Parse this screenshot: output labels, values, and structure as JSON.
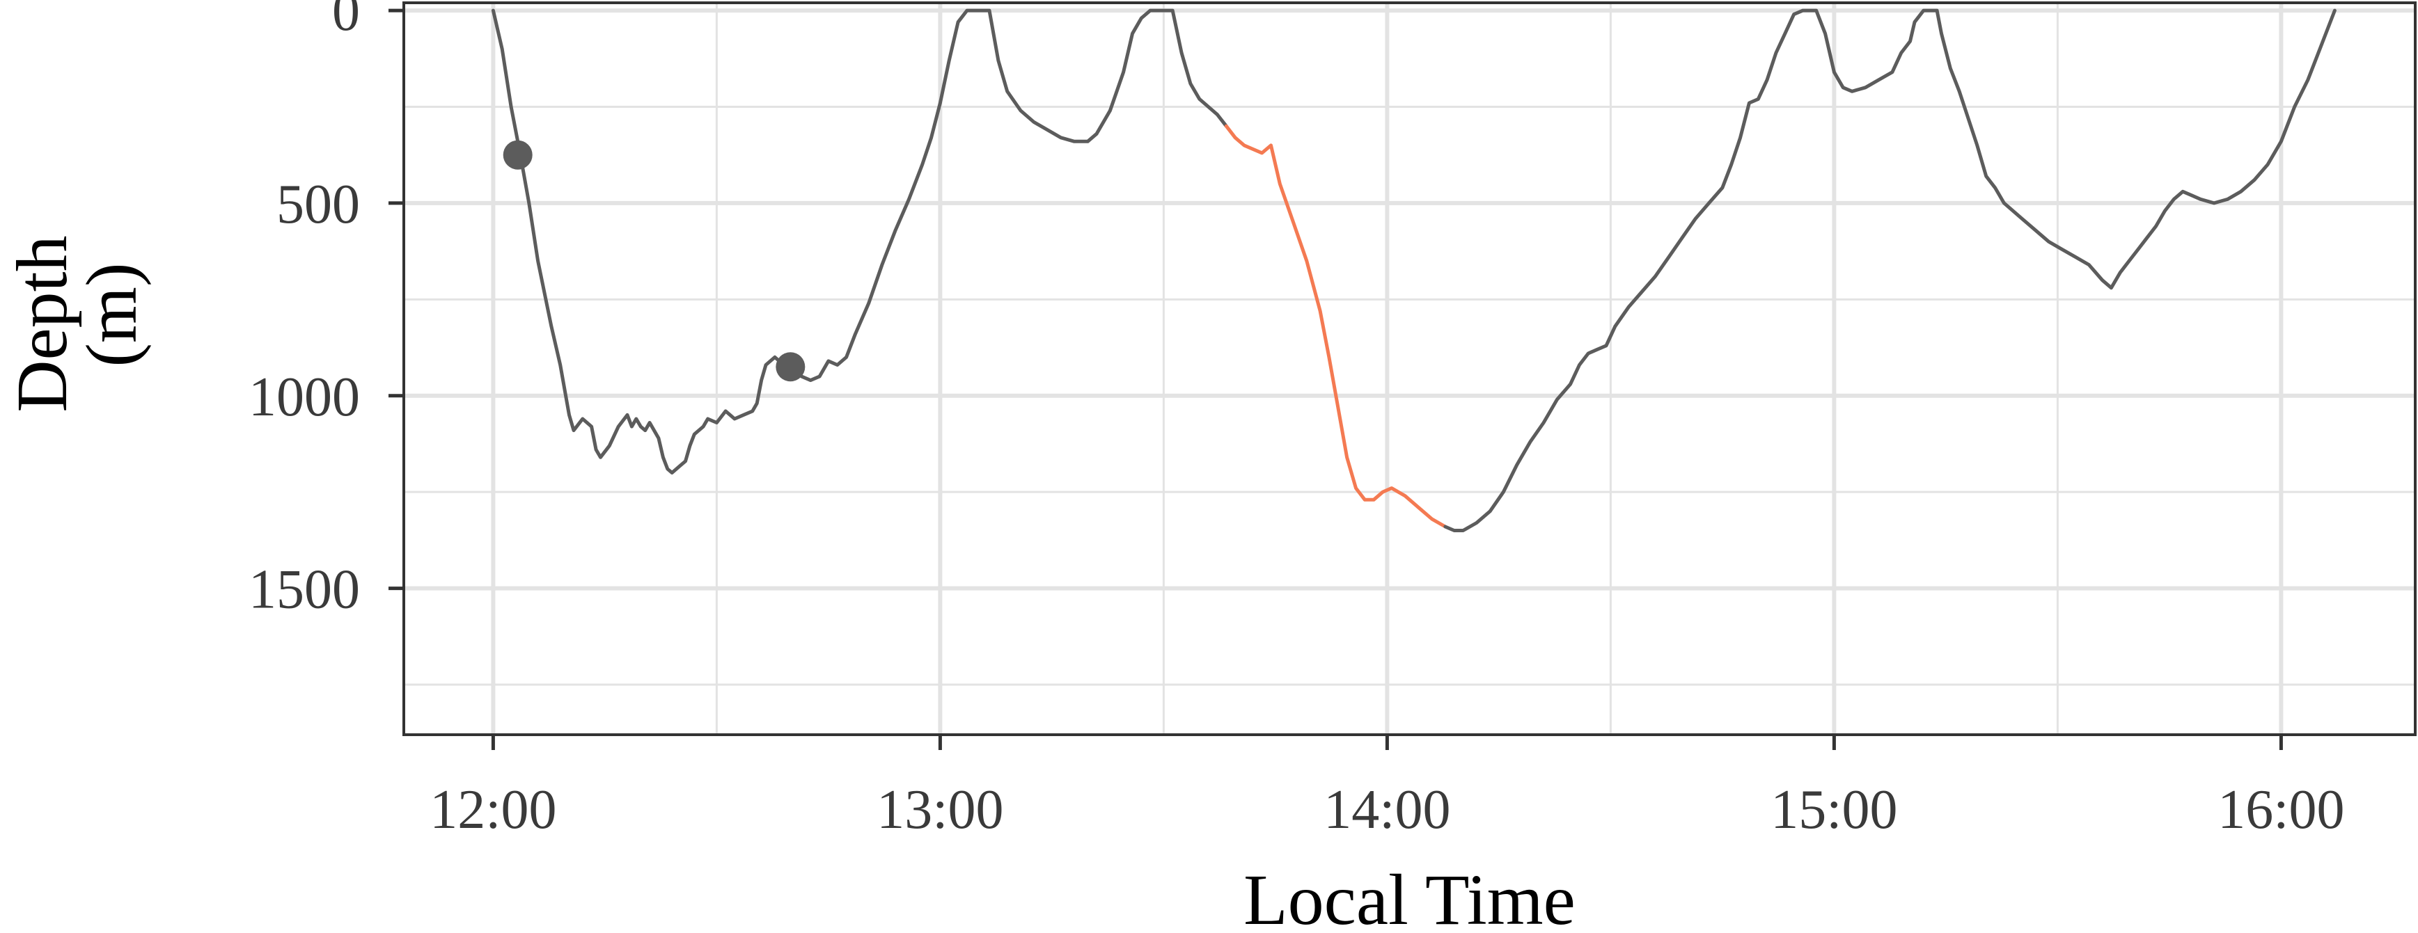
{
  "chart_data": {
    "type": "line",
    "xlabel": "Local Time",
    "ylabel_lines": [
      "Depth",
      "(m)"
    ],
    "x_units": "hours",
    "xlim": [
      11.8,
      16.3
    ],
    "ylim": [
      1880,
      -20
    ],
    "y_reversed": true,
    "x_ticks": [
      {
        "value": 12,
        "label": "12:00"
      },
      {
        "value": 13,
        "label": "13:00"
      },
      {
        "value": 14,
        "label": "14:00"
      },
      {
        "value": 15,
        "label": "15:00"
      },
      {
        "value": 16,
        "label": "16:00"
      }
    ],
    "y_ticks": [
      {
        "value": 0,
        "label": "0"
      },
      {
        "value": 500,
        "label": "500"
      },
      {
        "value": 1000,
        "label": "1000"
      },
      {
        "value": 1500,
        "label": "1500"
      }
    ],
    "x_minor": [
      12.5,
      13.5,
      14.5,
      15.5
    ],
    "y_minor": [
      250,
      750,
      1250,
      1750
    ],
    "grid": true,
    "colors": {
      "line": "#5c5c5c",
      "highlight": "#f47a52",
      "marker": "#5c5c5c",
      "grid": "#e3e3e3",
      "panel_border": "#333333"
    },
    "series": [
      {
        "points": [
          [
            12.0,
            0
          ],
          [
            12.02,
            100
          ],
          [
            12.04,
            250
          ],
          [
            12.06,
            370
          ],
          [
            12.08,
            500
          ],
          [
            12.1,
            650
          ],
          [
            12.13,
            820
          ],
          [
            12.15,
            920
          ],
          [
            12.17,
            1050
          ],
          [
            12.18,
            1090
          ],
          [
            12.2,
            1060
          ],
          [
            12.22,
            1080
          ],
          [
            12.23,
            1140
          ],
          [
            12.24,
            1160
          ],
          [
            12.26,
            1130
          ],
          [
            12.28,
            1080
          ],
          [
            12.3,
            1050
          ],
          [
            12.31,
            1080
          ],
          [
            12.32,
            1060
          ],
          [
            12.33,
            1080
          ],
          [
            12.34,
            1090
          ],
          [
            12.35,
            1070
          ],
          [
            12.37,
            1110
          ],
          [
            12.38,
            1160
          ],
          [
            12.39,
            1190
          ],
          [
            12.4,
            1200
          ],
          [
            12.42,
            1180
          ],
          [
            12.43,
            1170
          ],
          [
            12.44,
            1130
          ],
          [
            12.45,
            1100
          ],
          [
            12.47,
            1080
          ],
          [
            12.48,
            1060
          ],
          [
            12.5,
            1070
          ],
          [
            12.52,
            1040
          ],
          [
            12.54,
            1060
          ],
          [
            12.56,
            1050
          ],
          [
            12.58,
            1040
          ],
          [
            12.59,
            1020
          ],
          [
            12.6,
            960
          ],
          [
            12.61,
            920
          ],
          [
            12.63,
            900
          ],
          [
            12.65,
            920
          ],
          [
            12.67,
            930
          ],
          [
            12.69,
            950
          ],
          [
            12.71,
            960
          ],
          [
            12.73,
            950
          ],
          [
            12.75,
            910
          ],
          [
            12.77,
            920
          ],
          [
            12.79,
            900
          ],
          [
            12.81,
            840
          ],
          [
            12.84,
            760
          ],
          [
            12.87,
            660
          ],
          [
            12.9,
            570
          ],
          [
            12.93,
            490
          ],
          [
            12.96,
            400
          ],
          [
            12.98,
            330
          ],
          [
            13.0,
            240
          ],
          [
            13.02,
            130
          ],
          [
            13.04,
            30
          ],
          [
            13.06,
            0
          ],
          [
            13.09,
            0
          ],
          [
            13.11,
            0
          ],
          [
            13.13,
            130
          ],
          [
            13.15,
            210
          ],
          [
            13.18,
            260
          ],
          [
            13.21,
            290
          ],
          [
            13.24,
            310
          ],
          [
            13.27,
            330
          ],
          [
            13.3,
            340
          ],
          [
            13.33,
            340
          ],
          [
            13.35,
            320
          ],
          [
            13.38,
            260
          ],
          [
            13.41,
            160
          ],
          [
            13.43,
            60
          ],
          [
            13.45,
            20
          ],
          [
            13.47,
            0
          ],
          [
            13.5,
            0
          ],
          [
            13.52,
            0
          ],
          [
            13.54,
            110
          ],
          [
            13.56,
            190
          ],
          [
            13.58,
            230
          ],
          [
            13.6,
            250
          ],
          [
            13.62,
            270
          ],
          [
            13.64,
            300
          ],
          [
            13.66,
            330
          ],
          [
            13.68,
            350
          ],
          [
            13.7,
            360
          ],
          [
            13.72,
            370
          ],
          [
            13.74,
            350
          ],
          [
            13.76,
            450
          ],
          [
            13.79,
            550
          ],
          [
            13.82,
            650
          ],
          [
            13.85,
            780
          ],
          [
            13.87,
            900
          ],
          [
            13.89,
            1030
          ],
          [
            13.91,
            1160
          ],
          [
            13.93,
            1240
          ],
          [
            13.95,
            1270
          ],
          [
            13.97,
            1270
          ],
          [
            13.99,
            1250
          ],
          [
            14.01,
            1240
          ],
          [
            14.04,
            1260
          ],
          [
            14.07,
            1290
          ],
          [
            14.1,
            1320
          ],
          [
            14.13,
            1340
          ],
          [
            14.15,
            1350
          ],
          [
            14.17,
            1350
          ],
          [
            14.2,
            1330
          ],
          [
            14.23,
            1300
          ],
          [
            14.26,
            1250
          ],
          [
            14.29,
            1180
          ],
          [
            14.32,
            1120
          ],
          [
            14.35,
            1070
          ],
          [
            14.38,
            1010
          ],
          [
            14.41,
            970
          ],
          [
            14.43,
            920
          ],
          [
            14.45,
            890
          ],
          [
            14.47,
            880
          ],
          [
            14.49,
            870
          ],
          [
            14.51,
            820
          ],
          [
            14.54,
            770
          ],
          [
            14.57,
            730
          ],
          [
            14.6,
            690
          ],
          [
            14.63,
            640
          ],
          [
            14.66,
            590
          ],
          [
            14.69,
            540
          ],
          [
            14.72,
            500
          ],
          [
            14.75,
            460
          ],
          [
            14.77,
            400
          ],
          [
            14.79,
            330
          ],
          [
            14.81,
            240
          ],
          [
            14.83,
            230
          ],
          [
            14.85,
            180
          ],
          [
            14.87,
            110
          ],
          [
            14.89,
            60
          ],
          [
            14.91,
            10
          ],
          [
            14.93,
            0
          ],
          [
            14.96,
            0
          ],
          [
            14.98,
            60
          ],
          [
            15.0,
            160
          ],
          [
            15.02,
            200
          ],
          [
            15.04,
            210
          ],
          [
            15.07,
            200
          ],
          [
            15.1,
            180
          ],
          [
            15.13,
            160
          ],
          [
            15.15,
            110
          ],
          [
            15.17,
            80
          ],
          [
            15.18,
            30
          ],
          [
            15.2,
            0
          ],
          [
            15.23,
            0
          ],
          [
            15.24,
            60
          ],
          [
            15.26,
            150
          ],
          [
            15.28,
            210
          ],
          [
            15.3,
            280
          ],
          [
            15.32,
            350
          ],
          [
            15.34,
            430
          ],
          [
            15.36,
            460
          ],
          [
            15.38,
            500
          ],
          [
            15.4,
            520
          ],
          [
            15.42,
            540
          ],
          [
            15.45,
            570
          ],
          [
            15.48,
            600
          ],
          [
            15.51,
            620
          ],
          [
            15.54,
            640
          ],
          [
            15.57,
            660
          ],
          [
            15.6,
            700
          ],
          [
            15.62,
            720
          ],
          [
            15.64,
            680
          ],
          [
            15.66,
            650
          ],
          [
            15.68,
            620
          ],
          [
            15.7,
            590
          ],
          [
            15.72,
            560
          ],
          [
            15.74,
            520
          ],
          [
            15.76,
            490
          ],
          [
            15.78,
            470
          ],
          [
            15.8,
            480
          ],
          [
            15.82,
            490
          ],
          [
            15.85,
            500
          ],
          [
            15.88,
            490
          ],
          [
            15.91,
            470
          ],
          [
            15.94,
            440
          ],
          [
            15.97,
            400
          ],
          [
            16.0,
            340
          ],
          [
            16.03,
            250
          ],
          [
            16.06,
            180
          ],
          [
            16.09,
            90
          ],
          [
            16.12,
            0
          ]
        ]
      }
    ],
    "highlight_segments": [
      {
        "from": 13.64,
        "to": 14.13
      }
    ],
    "markers": [
      {
        "x": 12.055,
        "y": 375
      },
      {
        "x": 12.665,
        "y": 925
      }
    ]
  }
}
